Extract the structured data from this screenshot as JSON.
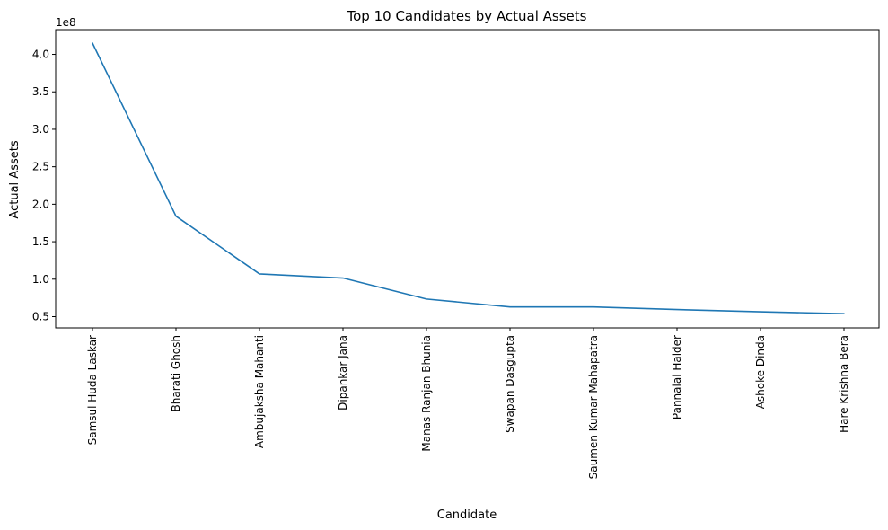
{
  "chart_data": {
    "type": "line",
    "title": "Top 10 Candidates by Actual Assets",
    "xlabel": "Candidate",
    "ylabel": "Actual Assets",
    "y_offset_label": "1e8",
    "categories": [
      "Samsul Huda Laskar",
      "Bharati Ghosh",
      "Ambujaksha Mahanti",
      "Dipankar Jana",
      "Manas Ranjan Bhunia",
      "Swapan Dasgupta",
      "Saumen Kumar Mahapatra",
      "Pannalal Halder",
      "Ashoke Dinda",
      "Hare Krishna Bera"
    ],
    "series": [
      {
        "values": [
          415000000,
          184000000,
          107000000,
          101500000,
          73500000,
          63000000,
          63000000,
          59500000,
          56500000,
          54000000
        ],
        "color": "#1f77b4"
      }
    ],
    "yticks": [
      0.5,
      1.0,
      1.5,
      2.0,
      2.5,
      3.0,
      3.5,
      4.0
    ],
    "ytick_labels": [
      "0.5",
      "1.0",
      "1.5",
      "2.0",
      "2.5",
      "3.0",
      "3.5",
      "4.0"
    ],
    "ylim": [
      0.35,
      4.33
    ],
    "grid": false,
    "legend": false
  }
}
